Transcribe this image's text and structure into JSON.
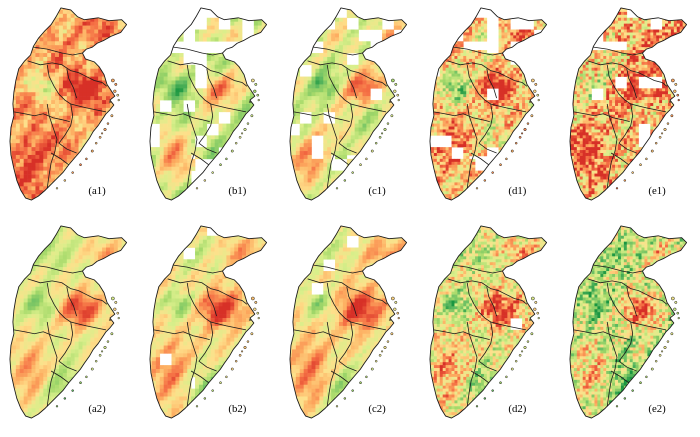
{
  "figure": {
    "panels": [
      {
        "id": "a1",
        "label": "(a1)",
        "row": 1,
        "col": 0,
        "missing": 0.0,
        "bias": 0.25,
        "speckle": 0.25
      },
      {
        "id": "b1",
        "label": "(b1)",
        "row": 1,
        "col": 1,
        "missing": 0.32,
        "bias": -0.05,
        "speckle": 0.1
      },
      {
        "id": "c1",
        "label": "(c1)",
        "row": 1,
        "col": 2,
        "missing": 0.22,
        "bias": 0.0,
        "speckle": 0.12
      },
      {
        "id": "d1",
        "label": "(d1)",
        "row": 1,
        "col": 3,
        "missing": 0.18,
        "bias": 0.15,
        "speckle": 0.45
      },
      {
        "id": "e1",
        "label": "(e1)",
        "row": 1,
        "col": 4,
        "missing": 0.12,
        "bias": 0.2,
        "speckle": 0.6
      },
      {
        "id": "a2",
        "label": "(a2)",
        "row": 2,
        "col": 0,
        "missing": 0.0,
        "bias": 0.05,
        "speckle": 0.05
      },
      {
        "id": "b2",
        "label": "(b2)",
        "row": 2,
        "col": 1,
        "missing": 0.05,
        "bias": 0.1,
        "speckle": 0.1
      },
      {
        "id": "c2",
        "label": "(c2)",
        "row": 2,
        "col": 2,
        "missing": 0.04,
        "bias": 0.12,
        "speckle": 0.1
      },
      {
        "id": "d2",
        "label": "(d2)",
        "row": 2,
        "col": 3,
        "missing": 0.03,
        "bias": 0.05,
        "speckle": 0.45
      },
      {
        "id": "e2",
        "label": "(e2)",
        "row": 2,
        "col": 4,
        "missing": 0.01,
        "bias": -0.05,
        "speckle": 0.55
      }
    ],
    "colors": {
      "ramp": [
        "#1a9641",
        "#66bd63",
        "#a6d96a",
        "#d9ef8b",
        "#fee08b",
        "#fdae61",
        "#f46d43",
        "#d73027"
      ],
      "boundary": "#1a1a1a",
      "background": "#ffffff"
    }
  }
}
